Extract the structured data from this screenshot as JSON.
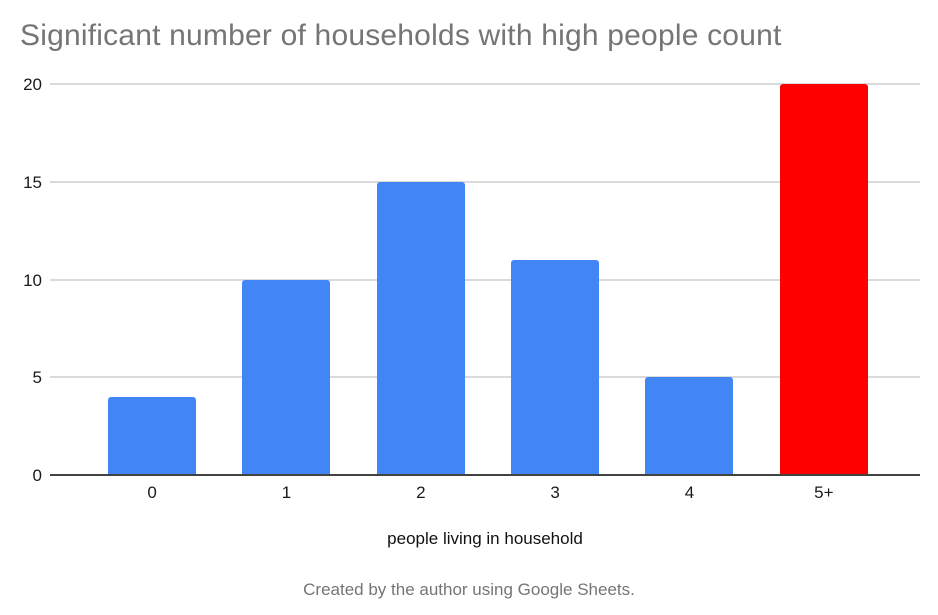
{
  "caption": "Created by the author using Google Sheets.",
  "colors": {
    "bar_blue": "#4285f4",
    "bar_red": "#ff0000",
    "title_gray": "#757575",
    "gridline_gray": "#dadada",
    "axis_line_dark": "#424242",
    "tick_label_black": "#1a1a1a"
  },
  "chart_data": {
    "type": "bar",
    "title": "Significant number of households with high people count",
    "categories": [
      "0",
      "1",
      "2",
      "3",
      "4",
      "5+"
    ],
    "values": [
      4,
      10,
      15,
      11,
      5,
      20
    ],
    "bar_colors": [
      "#4285f4",
      "#4285f4",
      "#4285f4",
      "#4285f4",
      "#4285f4",
      "#ff0000"
    ],
    "xlabel": "people living in household",
    "ylabel": "",
    "ylim": [
      0,
      20
    ],
    "yticks": [
      0,
      5,
      10,
      15,
      20
    ],
    "grid": "horizontal",
    "legend": "none"
  }
}
